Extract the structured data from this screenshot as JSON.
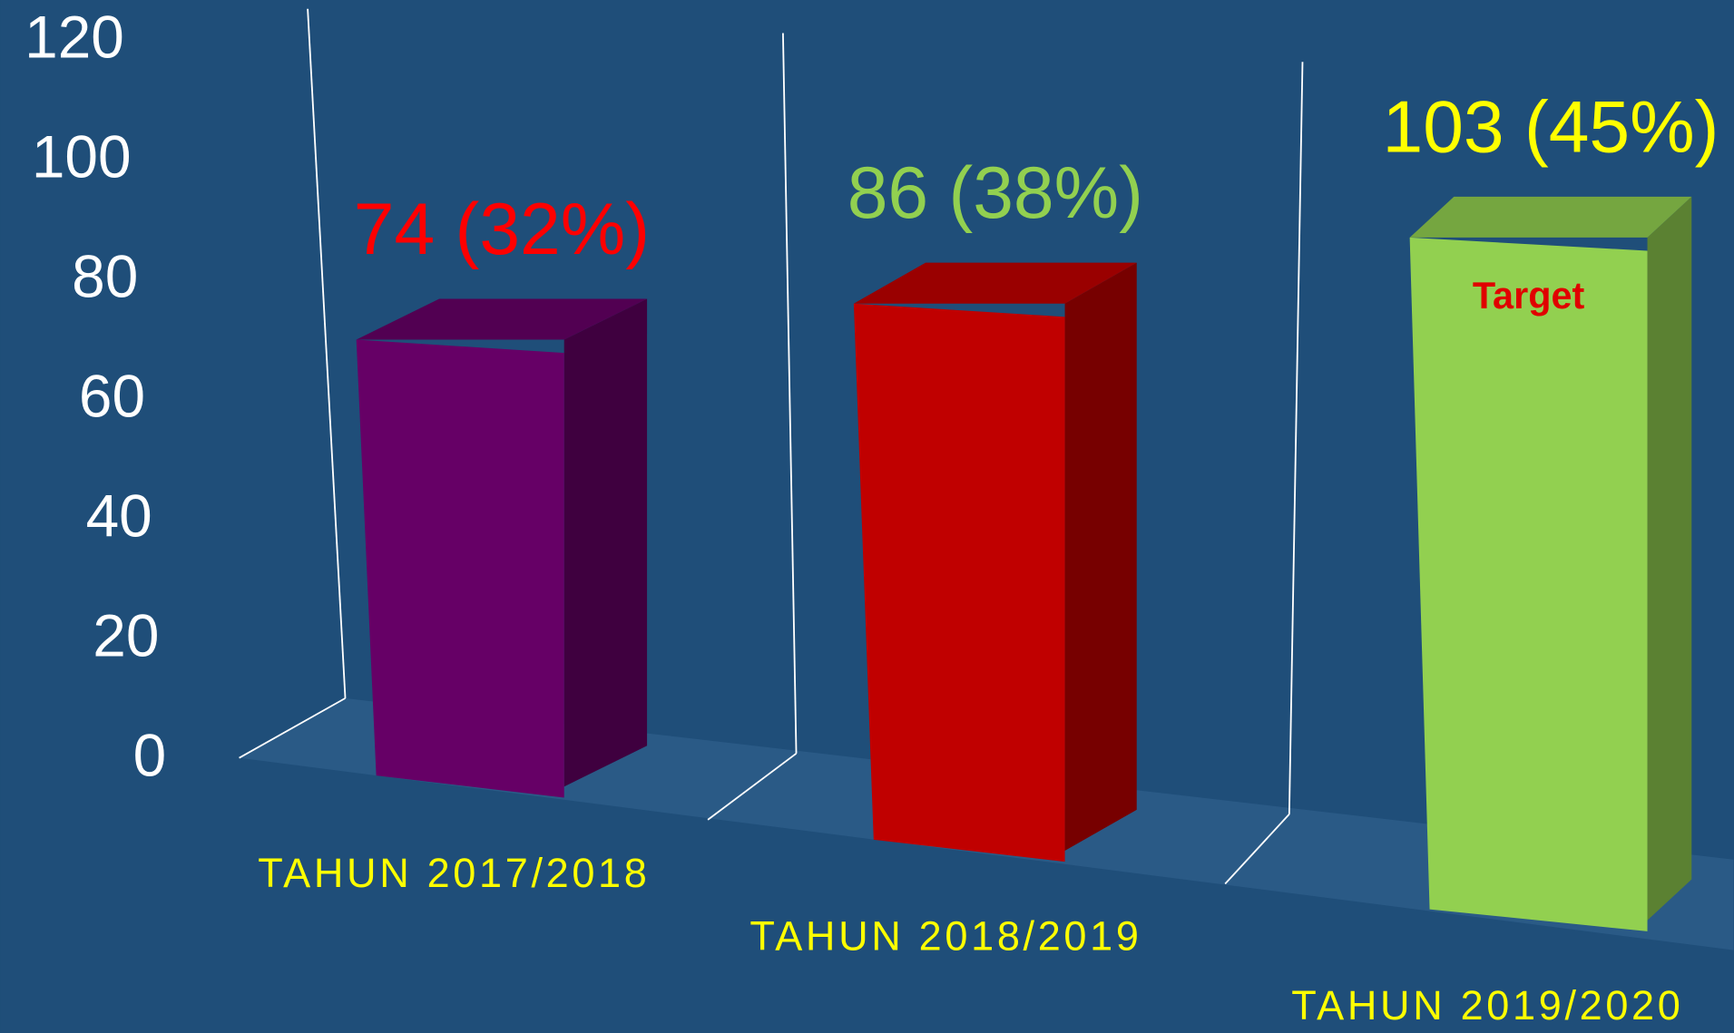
{
  "chart_data": {
    "type": "bar",
    "categories": [
      "TAHUN 2017/2018",
      "TAHUN 2018/2019",
      "TAHUN 2019/2020"
    ],
    "values": [
      74,
      86,
      103
    ],
    "value_labels": [
      "74 (32%)",
      "86 (38%)",
      "103 (45%)"
    ],
    "colors": [
      "#660066",
      "#c00000",
      "#92d050"
    ],
    "value_label_colors": [
      "#ff0000",
      "#92d050",
      "#ffff00"
    ],
    "annotation": "Target",
    "annotation_color": "#e00000",
    "category_label_color": "#ffff00",
    "axis_label_color": "#ffffff",
    "ylim": [
      0,
      120
    ],
    "yticks": [
      0,
      20,
      40,
      60,
      80,
      100,
      120
    ]
  }
}
